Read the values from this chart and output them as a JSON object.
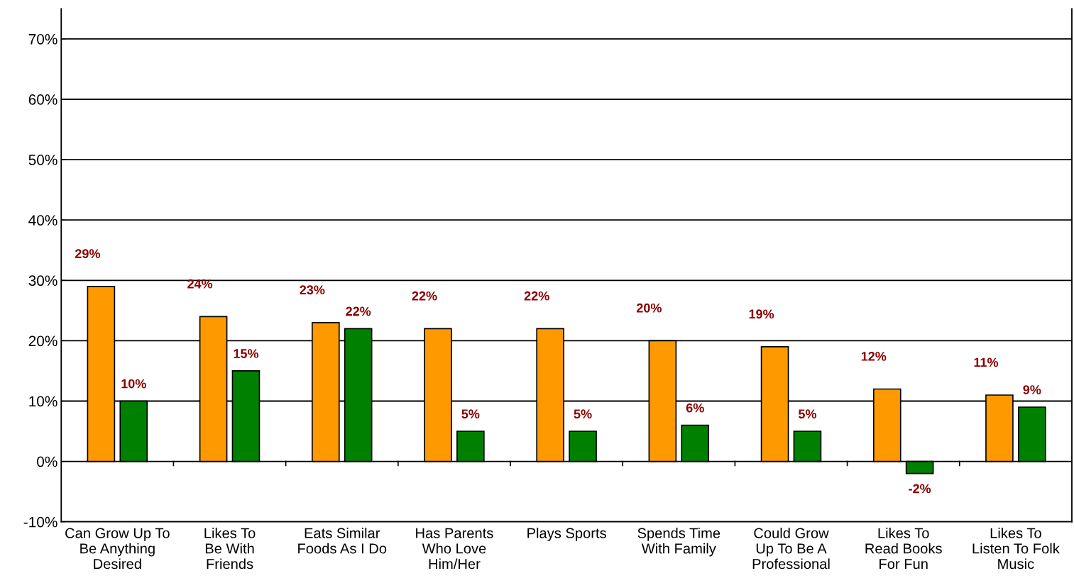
{
  "chart_data": {
    "type": "bar",
    "categories": [
      "Can Grow Up To\nBe Anything\nDesired",
      "Likes To\nBe With\nFriends",
      "Eats Similar\nFoods As I Do",
      "Has Parents\nWho Love\nHim/Her",
      "Plays Sports",
      "Spends Time\nWith Family",
      "Could Grow\nUp To Be A\nProfessional",
      "Likes To\nRead Books\nFor Fun",
      "Likes To\nListen To Folk\nMusic"
    ],
    "series": [
      {
        "color": "#ff9900",
        "values": [
          29,
          24,
          23,
          22,
          22,
          20,
          19,
          12,
          11
        ],
        "value_labels": [
          "29%",
          "24%",
          "23%",
          "22%",
          "22%",
          "20%",
          "19%",
          "12%",
          "11%"
        ]
      },
      {
        "color": "#008000",
        "values": [
          10,
          15,
          22,
          5,
          5,
          6,
          5,
          -2,
          9
        ],
        "value_labels": [
          "10%",
          "15%",
          "22%",
          "5%",
          "5%",
          "6%",
          "5%",
          "-2%",
          "9%"
        ]
      }
    ],
    "ylim": [
      -10,
      75
    ],
    "yticks": [
      {
        "value": -10,
        "label": "-10%"
      },
      {
        "value": 0,
        "label": "0%"
      },
      {
        "value": 10,
        "label": "10%"
      },
      {
        "value": 20,
        "label": "20%"
      },
      {
        "value": 30,
        "label": "30%"
      },
      {
        "value": 40,
        "label": "40%"
      },
      {
        "value": 50,
        "label": "50%"
      },
      {
        "value": 60,
        "label": "60%"
      },
      {
        "value": 70,
        "label": "70%"
      }
    ],
    "grid": "y",
    "legend": false
  }
}
